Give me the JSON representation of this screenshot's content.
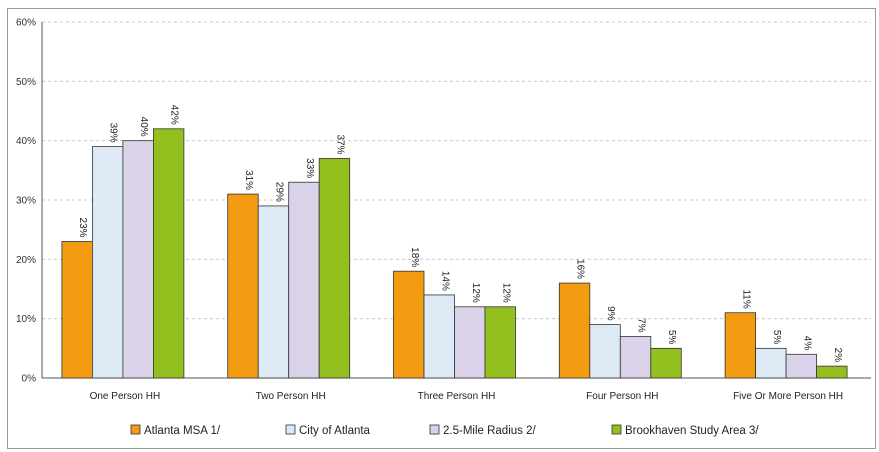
{
  "chart_data": {
    "type": "bar",
    "categories": [
      "One Person HH",
      "Two Person HH",
      "Three Person HH",
      "Four Person HH",
      "Five Or More Person HH"
    ],
    "series": [
      {
        "name": "Atlanta MSA 1/",
        "values": [
          23,
          31,
          18,
          16,
          11
        ],
        "labels": [
          "23%",
          "31%",
          "18%",
          "16%",
          "11%"
        ],
        "color": "#f39c12"
      },
      {
        "name": "City of Atlanta",
        "values": [
          39,
          29,
          14,
          9,
          5
        ],
        "labels": [
          "39%",
          "29%",
          "14%",
          "9%",
          "5%"
        ],
        "color": "#ddeaf5"
      },
      {
        "name": "2.5-Mile Radius 2/",
        "values": [
          40,
          33,
          12,
          7,
          4
        ],
        "labels": [
          "40%",
          "33%",
          "12%",
          "7%",
          "4%"
        ],
        "color": "#d9d2e9"
      },
      {
        "name": "Brookhaven Study Area 3/",
        "values": [
          42,
          37,
          12,
          5,
          2
        ],
        "labels": [
          "42%",
          "37%",
          "12%",
          "5%",
          "2%"
        ],
        "color": "#93c01f"
      }
    ],
    "y_ticks": [
      "0%",
      "10%",
      "20%",
      "30%",
      "40%",
      "50%",
      "60%"
    ],
    "ylim": [
      0,
      60
    ],
    "grid": true,
    "legend_position": "bottom"
  }
}
